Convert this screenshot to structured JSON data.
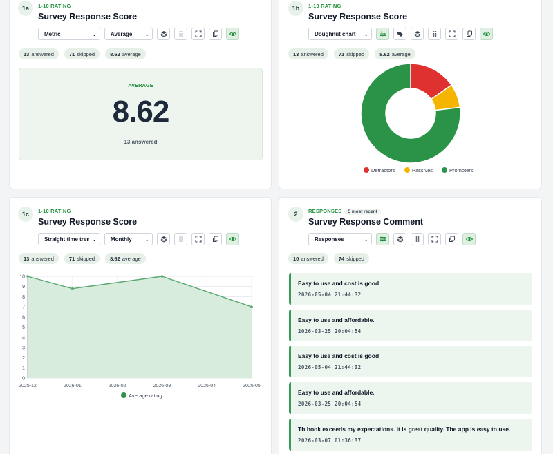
{
  "cards": {
    "c1a": {
      "number": "1a",
      "kicker": "1-10 RATING",
      "title": "Survey Response Score",
      "select1": "Metric",
      "select2": "Average",
      "pills": [
        [
          "13",
          "answered"
        ],
        [
          "71",
          "skipped"
        ],
        [
          "8.62",
          "average"
        ]
      ],
      "metric": {
        "label": "AVERAGE",
        "value": "8.62",
        "sub": "13 answered"
      }
    },
    "c1b": {
      "number": "1b",
      "kicker": "1-10 RATING",
      "title": "Survey Response Score",
      "select1": "Doughnut chart",
      "pills": [
        [
          "13",
          "answered"
        ],
        [
          "71",
          "skipped"
        ],
        [
          "8.62",
          "average"
        ]
      ]
    },
    "c1c": {
      "number": "1c",
      "kicker": "1-10 RATING",
      "title": "Survey Response Score",
      "select1": "Straight time trend",
      "select2": "Monthly",
      "pills": [
        [
          "13",
          "answered"
        ],
        [
          "71",
          "skipped"
        ],
        [
          "8.62",
          "average"
        ]
      ]
    },
    "c2": {
      "number": "2",
      "kicker": "RESPONSES",
      "kicker_extra": "5 most recent",
      "title": "Survey Response Comment",
      "select1": "Responses",
      "pills": [
        [
          "10",
          "answered"
        ],
        [
          "74",
          "skipped"
        ]
      ],
      "responses": [
        {
          "text": "Easy to use and cost is good",
          "time": "2026-05-04 21:44:32"
        },
        {
          "text": "Easy to use and affordable.",
          "time": "2026-03-25 20:04:54"
        },
        {
          "text": "Easy to use and cost is good",
          "time": "2026-05-04 21:44:32"
        },
        {
          "text": "Easy to use and affordable.",
          "time": "2026-03-25 20:04:54"
        },
        {
          "text": "Th book exceeds my expectations.  It is great quality.  The app is easy to use.",
          "time": "2026-03-07 01:36:37"
        }
      ]
    }
  },
  "chart_data": [
    {
      "type": "pie",
      "categories": [
        "Detractors",
        "Passives",
        "Promoters"
      ],
      "values": [
        2,
        1,
        10
      ],
      "colors": [
        "#e03131",
        "#f5b400",
        "#2b9348"
      ],
      "legend": "bottom"
    },
    {
      "type": "area",
      "x": [
        "2025-12",
        "2026-01",
        "2026-02",
        "2026-03",
        "2026-04",
        "2026-05"
      ],
      "series": [
        {
          "name": "Average rating",
          "x": [
            "2025-12",
            "2026-01",
            "2026-03",
            "2026-05"
          ],
          "values": [
            10,
            8.8,
            10,
            7
          ]
        }
      ],
      "ylim": [
        0,
        10
      ],
      "yticks": [
        "0",
        "1",
        "2",
        "3",
        "4",
        "5",
        "6",
        "7",
        "8",
        "9",
        "10"
      ],
      "grid": true,
      "color": "#5aa86f",
      "legend": "bottom"
    }
  ]
}
